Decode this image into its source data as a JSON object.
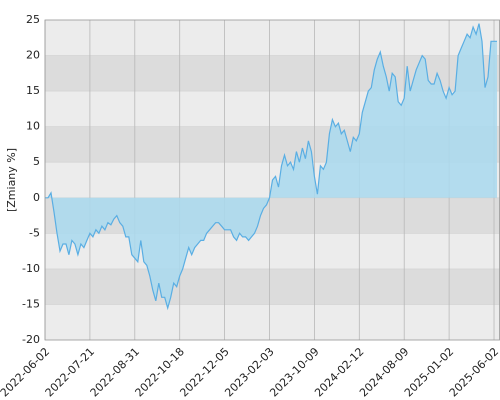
{
  "chart_data": {
    "type": "area",
    "y_label": "[Zmiany %]",
    "ylim": [
      -20,
      25
    ],
    "yticks": [
      -20,
      -15,
      -10,
      -5,
      0,
      5,
      10,
      15,
      20,
      25
    ],
    "xlim": [
      0,
      152
    ],
    "xticks": [
      {
        "value": 0,
        "label": "2022-06-02"
      },
      {
        "value": 15,
        "label": "2022-07-21"
      },
      {
        "value": 30,
        "label": "2022-08-31"
      },
      {
        "value": 45,
        "label": "2022-10-18"
      },
      {
        "value": 60,
        "label": "2022-12-05"
      },
      {
        "value": 75,
        "label": "2023-02-03"
      },
      {
        "value": 90,
        "label": "2023-10-09"
      },
      {
        "value": 105,
        "label": "2024-02-12"
      },
      {
        "value": 120,
        "label": "2024-08-09"
      },
      {
        "value": 135,
        "label": "2025-01-02"
      },
      {
        "value": 150,
        "label": "2025-06-02"
      }
    ],
    "grid": true,
    "series": [
      {
        "color": "#5aaee3",
        "fill": "#a9d9ef",
        "values": [
          0,
          0,
          0.7,
          -2,
          -5,
          -7.5,
          -6.5,
          -6.5,
          -8,
          -6,
          -6.5,
          -8,
          -6.5,
          -7,
          -6,
          -5,
          -5.5,
          -4.5,
          -5,
          -4,
          -4.5,
          -3.5,
          -3.8,
          -3,
          -2.5,
          -3.5,
          -4,
          -5.5,
          -5.5,
          -8,
          -8.5,
          -9,
          -6,
          -9,
          -9.5,
          -11,
          -13,
          -14.5,
          -12,
          -14,
          -14,
          -15.5,
          -14,
          -12,
          -12.5,
          -11,
          -10,
          -8.5,
          -7,
          -8,
          -7,
          -6.5,
          -6,
          -6,
          -5,
          -4.5,
          -4,
          -3.5,
          -3.5,
          -4,
          -4.5,
          -4.5,
          -4.5,
          -5.5,
          -6,
          -5,
          -5.5,
          -5.5,
          -6,
          -5.5,
          -5,
          -4,
          -2.5,
          -1.5,
          -1,
          0,
          2.5,
          3,
          1.5,
          4.5,
          6,
          4.5,
          5,
          4,
          6.5,
          5,
          7,
          5.5,
          8,
          6.5,
          3,
          0.5,
          4.5,
          4,
          5,
          9,
          11,
          10,
          10.5,
          9,
          9.5,
          8,
          6.5,
          8.5,
          8,
          9,
          12,
          13.5,
          15,
          15.5,
          18,
          19.5,
          20.5,
          18.5,
          17,
          15,
          17.5,
          17,
          13.5,
          13,
          14,
          18.5,
          15,
          16.5,
          18,
          19,
          20,
          19.5,
          16.5,
          16,
          16,
          17.5,
          16.5,
          15,
          14,
          15.5,
          14.5,
          15,
          20,
          21,
          22,
          23,
          22.5,
          24,
          23,
          24.5,
          22,
          15.5,
          17,
          22,
          22,
          22
        ]
      }
    ]
  }
}
